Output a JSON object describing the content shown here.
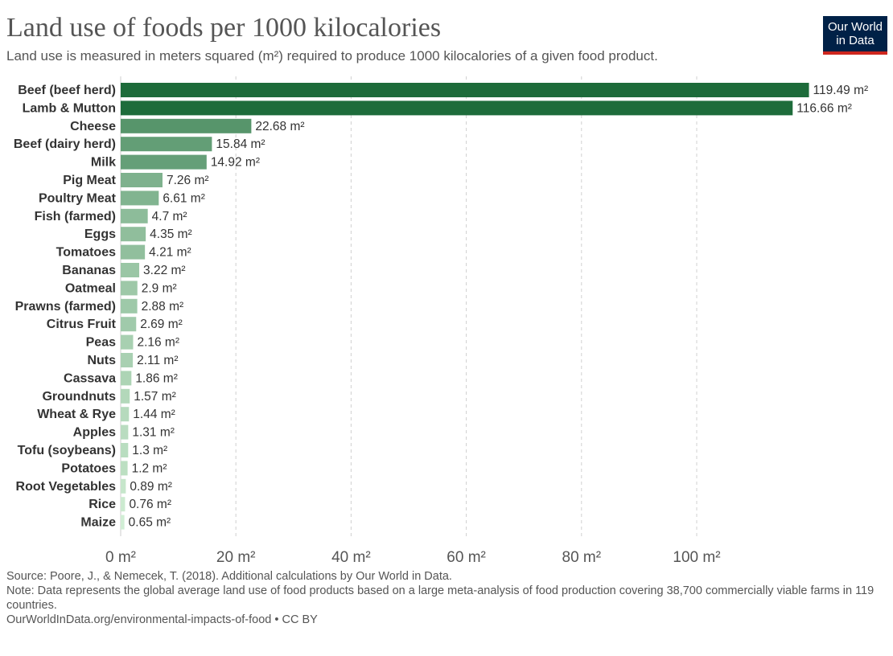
{
  "header": {
    "title": "Land use of foods per 1000 kilocalories",
    "subtitle": "Land use is measured in meters squared (m²) required to produce 1000 kilocalories of a given food product."
  },
  "logo": {
    "line1": "Our World",
    "line2": "in Data",
    "bg_color": "#002147",
    "accent_color": "#ce261e"
  },
  "footer": {
    "source": "Source: Poore, J., & Nemecek, T. (2018). Additional calculations by Our World in Data.",
    "note": "Note: Data represents the global average land use of food products based on a large meta-analysis of food production covering 38,700 commercially viable farms in 119 countries.",
    "url": "OurWorldInData.org/environmental-impacts-of-food • CC BY"
  },
  "chart_data": {
    "type": "bar",
    "orientation": "horizontal",
    "categories": [
      "Beef (beef herd)",
      "Lamb & Mutton",
      "Cheese",
      "Beef (dairy herd)",
      "Milk",
      "Pig Meat",
      "Poultry Meat",
      "Fish (farmed)",
      "Eggs",
      "Tomatoes",
      "Bananas",
      "Oatmeal",
      "Prawns (farmed)",
      "Citrus Fruit",
      "Peas",
      "Nuts",
      "Cassava",
      "Groundnuts",
      "Wheat & Rye",
      "Apples",
      "Tofu (soybeans)",
      "Potatoes",
      "Root Vegetables",
      "Rice",
      "Maize"
    ],
    "values": [
      119.49,
      116.66,
      22.68,
      15.84,
      14.92,
      7.26,
      6.61,
      4.7,
      4.35,
      4.21,
      3.22,
      2.9,
      2.88,
      2.69,
      2.16,
      2.11,
      1.86,
      1.57,
      1.44,
      1.31,
      1.3,
      1.2,
      0.89,
      0.76,
      0.65
    ],
    "value_labels": [
      "119.49 m²",
      "116.66 m²",
      "22.68 m²",
      "15.84 m²",
      "14.92 m²",
      "7.26 m²",
      "6.61 m²",
      "4.7 m²",
      "4.35 m²",
      "4.21 m²",
      "3.22 m²",
      "2.9 m²",
      "2.88 m²",
      "2.69 m²",
      "2.16 m²",
      "2.11 m²",
      "1.86 m²",
      "1.57 m²",
      "1.44 m²",
      "1.31 m²",
      "1.3 m²",
      "1.2 m²",
      "0.89 m²",
      "0.76 m²",
      "0.65 m²"
    ],
    "xticks": [
      0,
      20,
      40,
      60,
      80,
      100
    ],
    "xtick_labels": [
      "0 m²",
      "20 m²",
      "40 m²",
      "60 m²",
      "80 m²",
      "100 m²"
    ],
    "xlim": [
      0,
      120
    ],
    "grid": "vertical dashed",
    "colors": {
      "bar_dark": "#1d6b3a",
      "bar_light": "#d4f0d7",
      "grid": "#d0d0d0",
      "text": "#333333"
    }
  }
}
